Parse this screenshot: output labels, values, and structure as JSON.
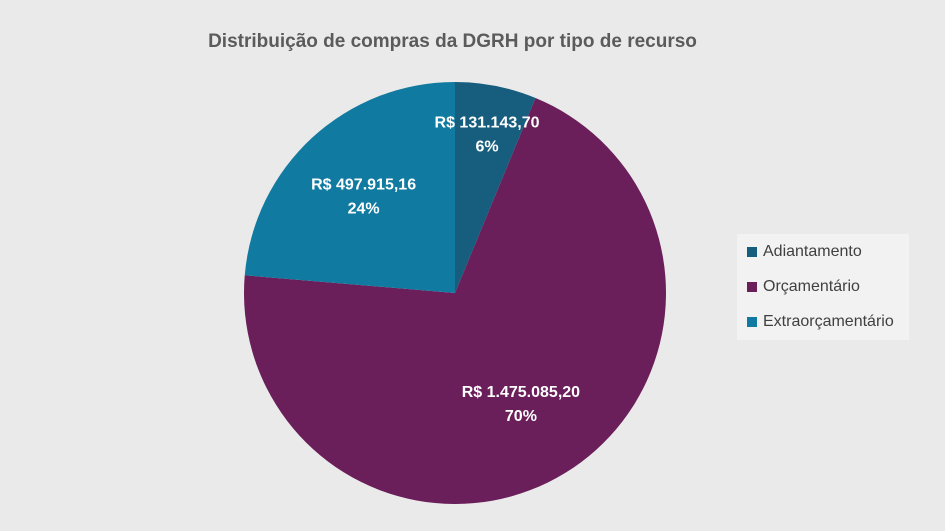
{
  "chart_data": {
    "type": "pie",
    "title": "Distribuição de compras da DGRH por tipo de recurso",
    "slices": [
      {
        "name": "Adiantamento",
        "value_label": "R$ 131.143,70",
        "percent_label": "6%",
        "value": 131143.7,
        "color": "#175e7e"
      },
      {
        "name": "Orçamentário",
        "value_label": "R$ 1.475.085,20",
        "percent_label": "70%",
        "value": 1475085.2,
        "color": "#6a1e5a"
      },
      {
        "name": "Extraorçamentário",
        "value_label": "R$ 497.915,16",
        "percent_label": "24%",
        "value": 497915.16,
        "color": "#117aa0"
      }
    ],
    "legend_position": "right",
    "start_angle_deg": 0,
    "direction": "clockwise"
  }
}
